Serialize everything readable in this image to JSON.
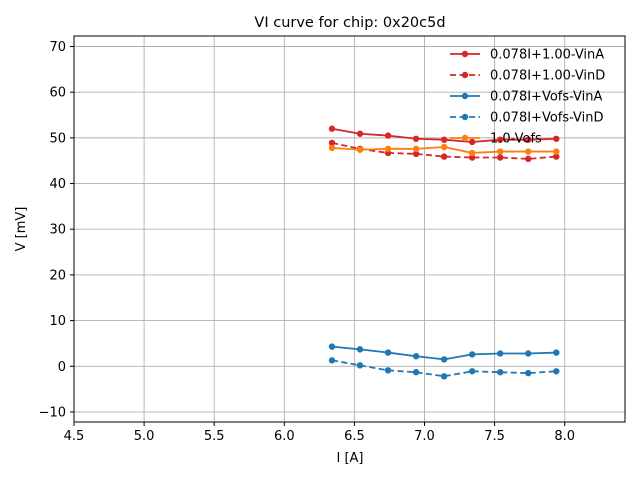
{
  "chart_data": {
    "type": "line",
    "title": "VI curve for chip: 0x20c5d",
    "xlabel": "I [A]",
    "ylabel": "V [mV]",
    "xlim": [
      4.5,
      8.43
    ],
    "ylim": [
      -12.2,
      72.3
    ],
    "xticks": [
      4.5,
      5.0,
      5.5,
      6.0,
      6.5,
      7.0,
      7.5,
      8.0
    ],
    "xtick_labels": [
      "4.5",
      "5.0",
      "5.5",
      "6.0",
      "6.5",
      "7.0",
      "7.5",
      "8.0"
    ],
    "yticks": [
      -10,
      0,
      10,
      20,
      30,
      40,
      50,
      60,
      70
    ],
    "ytick_labels": [
      "−10",
      "0",
      "10",
      "20",
      "30",
      "40",
      "50",
      "60",
      "70"
    ],
    "grid": true,
    "legend_position": "top-right",
    "x": [
      6.34,
      6.54,
      6.74,
      6.94,
      7.14,
      7.34,
      7.54,
      7.74,
      7.94
    ],
    "series": [
      {
        "name": "0.078I+1.00-VinA",
        "color": "#d62728",
        "style": "solid",
        "marker": "circle",
        "values": [
          52.0,
          50.9,
          50.5,
          49.8,
          49.6,
          49.1,
          49.6,
          49.6,
          49.8
        ]
      },
      {
        "name": "0.078I+1.00-VinD",
        "color": "#d62728",
        "style": "dashed",
        "marker": "circle",
        "values": [
          48.9,
          47.6,
          46.7,
          46.5,
          45.9,
          45.7,
          45.7,
          45.4,
          45.9
        ]
      },
      {
        "name": "0.078I+Vofs-VinA",
        "color": "#1f77b4",
        "style": "solid",
        "marker": "circle",
        "values": [
          4.3,
          3.7,
          3.0,
          2.2,
          1.5,
          2.6,
          2.8,
          2.8,
          3.0
        ]
      },
      {
        "name": "0.078I+Vofs-VinD",
        "color": "#1f77b4",
        "style": "dashed",
        "marker": "circle",
        "values": [
          1.3,
          0.2,
          -0.9,
          -1.3,
          -2.2,
          -1.1,
          -1.3,
          -1.5,
          -1.1
        ]
      },
      {
        "name": "1.0-Vofs",
        "color": "#ff7f0e",
        "style": "solid",
        "marker": "circle",
        "values": [
          47.8,
          47.4,
          47.6,
          47.6,
          48.0,
          46.7,
          47.0,
          47.0,
          47.0
        ]
      }
    ]
  }
}
